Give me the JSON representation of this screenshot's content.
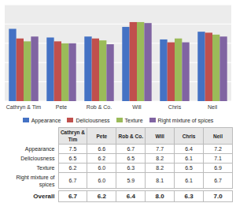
{
  "chart_data": {
    "type": "bar",
    "categories": [
      "Cathryn & Tim",
      "Pete",
      "Rob & Co.",
      "Will",
      "Chris",
      "Neil"
    ],
    "series": [
      {
        "name": "Appearance",
        "color": "#4472C4",
        "values": [
          7.5,
          6.6,
          6.7,
          7.7,
          6.4,
          7.2
        ],
        "value_labels": [
          "7.5",
          "6.6",
          "6.7",
          "7.7",
          "6.4",
          "7.2"
        ]
      },
      {
        "name": "Deliciousness",
        "color": "#C0504D",
        "values": [
          6.5,
          6.2,
          6.5,
          8.2,
          6.1,
          7.1
        ],
        "value_labels": [
          "6.5",
          "6.2",
          "6.5",
          "8.2",
          "6.1",
          "7.1"
        ]
      },
      {
        "name": "Texture",
        "color": "#9BBB59",
        "values": [
          6.2,
          6.0,
          6.3,
          8.2,
          6.5,
          6.9
        ],
        "value_labels": [
          "6.2",
          "6.0",
          "6.3",
          "8.2",
          "6.5",
          "6.9"
        ]
      },
      {
        "name": "Right mixture of spices",
        "color": "#8064A2",
        "values": [
          6.7,
          6.0,
          5.9,
          8.1,
          6.1,
          6.7
        ],
        "value_labels": [
          "6.7",
          "6.0",
          "5.9",
          "8.1",
          "6.1",
          "6.7"
        ]
      }
    ],
    "overall": {
      "name": "Overall",
      "values": [
        6.7,
        6.2,
        6.4,
        8.0,
        6.3,
        7.0
      ],
      "value_labels": [
        "6.7",
        "6.2",
        "6.4",
        "8.0",
        "6.3",
        "7.0"
      ]
    },
    "ylim": [
      0,
      10
    ],
    "yticks": [
      0,
      2,
      4,
      6,
      8,
      10
    ],
    "grid": true,
    "tick_labels": "x"
  }
}
